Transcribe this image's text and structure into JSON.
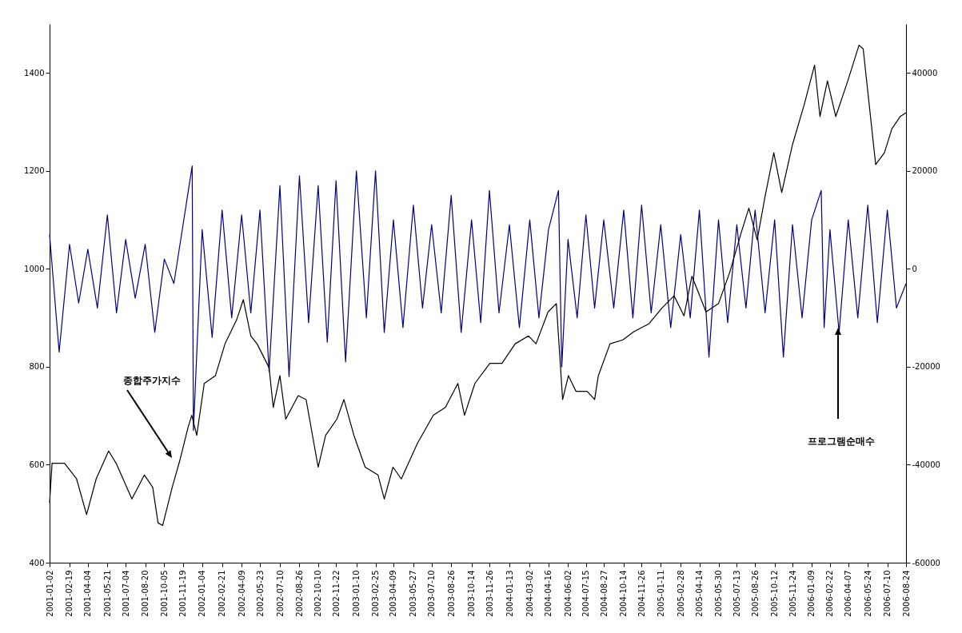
{
  "chart_data": {
    "type": "line",
    "xlim": [
      "2001-01-02",
      "2006-08-24"
    ],
    "xticks": [
      "2001-01-02",
      "2001-02-19",
      "2001-04-04",
      "2001-05-21",
      "2001-07-04",
      "2001-08-20",
      "2001-10-05",
      "2001-11-19",
      "2002-01-04",
      "2002-02-21",
      "2002-04-09",
      "2002-05-23",
      "2002-07-10",
      "2002-08-26",
      "2002-10-10",
      "2002-11-22",
      "2003-01-10",
      "2003-02-25",
      "2003-04-09",
      "2003-05-27",
      "2003-07-10",
      "2003-08-26",
      "2003-10-14",
      "2003-11-26",
      "2004-01-13",
      "2004-03-02",
      "2004-04-16",
      "2004-06-02",
      "2004-07-15",
      "2004-08-27",
      "2004-10-14",
      "2004-11-26",
      "2005-01-11",
      "2005-02-28",
      "2005-04-14",
      "2005-05-30",
      "2005-07-13",
      "2005-08-26",
      "2005-10-12",
      "2005-11-24",
      "2006-01-09",
      "2006-02-22",
      "2006-04-07",
      "2006-05-24",
      "2006-07-10",
      "2006-08-24"
    ],
    "ylim": [
      400,
      1500
    ],
    "yticks": [
      400,
      600,
      800,
      1000,
      1200,
      1400
    ],
    "y2lim": [
      -60000,
      50000
    ],
    "y2ticks": [
      -60000,
      -40000,
      -20000,
      0,
      20000,
      40000
    ],
    "series": [
      {
        "color": "#000080",
        "axis": "y2",
        "x": [
          "2001-01-02",
          "2001-01-25",
          "2001-02-19",
          "2001-03-13",
          "2001-04-04",
          "2001-04-27",
          "2001-05-21",
          "2001-06-12",
          "2001-07-04",
          "2001-07-27",
          "2001-08-20",
          "2001-09-12",
          "2001-10-05",
          "2001-10-28",
          "2001-11-19",
          "2001-12-11",
          "2001-12-14",
          "2002-01-04",
          "2002-01-28",
          "2002-02-21",
          "2002-03-16",
          "2002-04-09",
          "2002-05-01",
          "2002-05-23",
          "2002-06-14",
          "2002-07-10",
          "2002-08-01",
          "2002-08-26",
          "2002-09-17",
          "2002-10-10",
          "2002-11-01",
          "2002-11-22",
          "2002-12-15",
          "2003-01-10",
          "2003-02-03",
          "2003-02-25",
          "2003-03-18",
          "2003-04-09",
          "2003-05-02",
          "2003-05-27",
          "2003-06-18",
          "2003-07-10",
          "2003-08-02",
          "2003-08-26",
          "2003-09-19",
          "2003-10-14",
          "2003-11-05",
          "2003-11-26",
          "2003-12-19",
          "2004-01-13",
          "2004-02-06",
          "2004-03-02",
          "2004-03-24",
          "2004-04-16",
          "2004-05-10",
          "2004-05-18",
          "2004-06-02",
          "2004-06-24",
          "2004-07-15",
          "2004-08-05",
          "2004-08-27",
          "2004-09-20",
          "2004-10-14",
          "2004-11-05",
          "2004-11-26",
          "2004-12-19",
          "2005-01-11",
          "2005-02-04",
          "2005-02-28",
          "2005-03-23",
          "2005-04-14",
          "2005-05-07",
          "2005-05-30",
          "2005-06-21",
          "2005-07-13",
          "2005-08-04",
          "2005-08-26",
          "2005-09-19",
          "2005-10-12",
          "2005-11-02",
          "2005-11-24",
          "2005-12-17",
          "2006-01-09",
          "2006-02-01",
          "2006-02-08",
          "2006-02-22",
          "2006-03-16",
          "2006-04-07",
          "2006-04-30",
          "2006-05-24",
          "2006-06-16",
          "2006-07-10",
          "2006-08-01",
          "2006-08-24"
        ],
        "values": [
          7000,
          -17000,
          5000,
          -7000,
          4000,
          -8000,
          11000,
          -9000,
          6000,
          -6000,
          5000,
          -13000,
          2000,
          -3000,
          9000,
          21000,
          -33000,
          8000,
          -14000,
          12000,
          -10000,
          11000,
          -9000,
          12000,
          -21000,
          17000,
          -22000,
          19000,
          -11000,
          17000,
          -15000,
          18000,
          -19000,
          20000,
          -10000,
          20000,
          -13000,
          10000,
          -12000,
          13000,
          -8000,
          9000,
          -9000,
          15000,
          -13000,
          10000,
          -11000,
          16000,
          -9000,
          9000,
          -12000,
          10000,
          -10000,
          8000,
          16000,
          -20000,
          6000,
          -10000,
          11000,
          -8000,
          10000,
          -8000,
          12000,
          -10000,
          13000,
          -9000,
          9000,
          -12000,
          7000,
          -10000,
          12000,
          -18000,
          10000,
          -11000,
          9000,
          -8000,
          12000,
          -9000,
          10000,
          -18000,
          9000,
          -10000,
          10000,
          16000,
          -12000,
          8000,
          -13000,
          10000,
          -10000,
          13000,
          -11000,
          12000,
          -8000,
          -3000
        ]
      },
      {
        "color": "#000000",
        "axis": "y",
        "x": [
          "2001-01-02",
          "2001-01-08",
          "2001-02-07",
          "2001-03-08",
          "2001-04-01",
          "2001-04-24",
          "2001-05-24",
          "2001-06-11",
          "2001-07-19",
          "2001-08-18",
          "2001-09-07",
          "2001-09-20",
          "2001-10-01",
          "2001-10-24",
          "2001-11-12",
          "2001-12-01",
          "2001-12-10",
          "2001-12-22",
          "2002-01-09",
          "2002-02-05",
          "2002-02-28",
          "2002-03-28",
          "2002-04-13",
          "2002-05-01",
          "2002-05-16",
          "2002-06-14",
          "2002-06-24",
          "2002-07-10",
          "2002-07-24",
          "2002-08-23",
          "2002-09-11",
          "2002-10-10",
          "2002-10-28",
          "2002-11-24",
          "2002-12-11",
          "2003-01-04",
          "2003-01-31",
          "2003-03-03",
          "2003-03-18",
          "2003-04-08",
          "2003-04-28",
          "2003-06-06",
          "2003-07-14",
          "2003-08-12",
          "2003-09-11",
          "2003-09-27",
          "2003-10-22",
          "2003-11-27",
          "2003-12-26",
          "2004-01-27",
          "2004-02-28",
          "2004-03-17",
          "2004-04-15",
          "2004-05-05",
          "2004-05-20",
          "2004-06-03",
          "2004-06-21",
          "2004-07-18",
          "2004-08-05",
          "2004-08-14",
          "2004-09-11",
          "2004-10-12",
          "2004-11-08",
          "2004-12-14",
          "2005-01-14",
          "2005-02-12",
          "2005-03-08",
          "2005-03-27",
          "2005-04-30",
          "2005-05-30",
          "2005-06-26",
          "2005-07-24",
          "2005-08-11",
          "2005-08-31",
          "2005-09-19",
          "2005-10-10",
          "2005-10-29",
          "2005-11-24",
          "2005-12-22",
          "2006-01-16",
          "2006-01-29",
          "2006-02-16",
          "2006-03-08",
          "2006-04-06",
          "2006-05-03",
          "2006-05-13",
          "2006-06-12",
          "2006-07-03",
          "2006-07-21",
          "2006-08-10",
          "2006-08-24"
        ],
        "values": [
          522,
          603,
          603,
          571,
          498,
          571,
          628,
          603,
          530,
          579,
          554,
          481,
          476,
          554,
          611,
          676,
          701,
          660,
          766,
          782,
          847,
          896,
          937,
          863,
          847,
          798,
          717,
          782,
          693,
          741,
          733,
          595,
          660,
          693,
          733,
          660,
          595,
          579,
          530,
          595,
          571,
          644,
          701,
          717,
          766,
          701,
          766,
          807,
          807,
          847,
          863,
          847,
          912,
          929,
          733,
          782,
          750,
          750,
          733,
          782,
          847,
          855,
          872,
          888,
          920,
          945,
          904,
          985,
          912,
          929,
          993,
          1075,
          1124,
          1059,
          1148,
          1237,
          1156,
          1254,
          1335,
          1416,
          1311,
          1384,
          1311,
          1384,
          1457,
          1449,
          1213,
          1237,
          1286,
          1311,
          1319
        ]
      }
    ],
    "annotations": [
      "종합주가지수",
      "프로그램순매수"
    ]
  }
}
